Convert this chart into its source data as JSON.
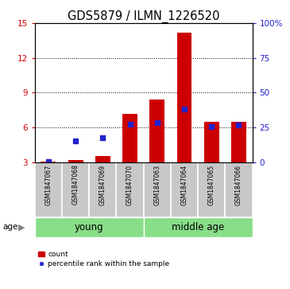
{
  "title": "GDS5879 / ILMN_1226520",
  "samples": [
    "GSM1847067",
    "GSM1847068",
    "GSM1847069",
    "GSM1847070",
    "GSM1847063",
    "GSM1847064",
    "GSM1847065",
    "GSM1847066"
  ],
  "count_values": [
    3.05,
    3.15,
    3.5,
    7.2,
    8.4,
    14.2,
    6.5,
    6.5
  ],
  "percentile_values": [
    3.05,
    4.8,
    5.1,
    6.3,
    6.4,
    7.6,
    6.1,
    6.2
  ],
  "ylim_left": [
    3,
    15
  ],
  "ylim_right": [
    0,
    100
  ],
  "yticks_left": [
    3,
    6,
    9,
    12,
    15
  ],
  "yticks_right": [
    0,
    25,
    50,
    75,
    100
  ],
  "bar_color": "#cc0000",
  "dot_color": "#2222cc",
  "bar_width": 0.55,
  "bg_color": "#c8c8c8",
  "label_color_left": "#cc0000",
  "label_color_right": "#2222cc",
  "legend_count_label": "count",
  "legend_pct_label": "percentile rank within the sample",
  "age_label": "age",
  "group_young": "young",
  "group_middle": "middle age",
  "green_color": "#88dd88",
  "group_label_fontsize": 8.5,
  "tick_fontsize": 7.5,
  "title_fontsize": 10.5,
  "sample_fontsize": 5.5
}
